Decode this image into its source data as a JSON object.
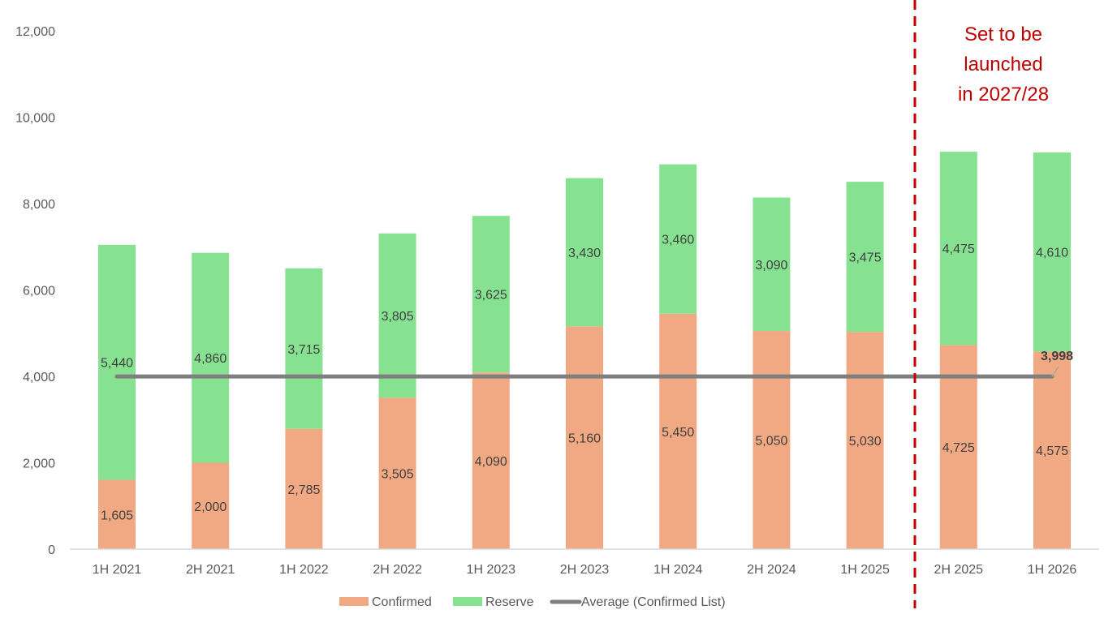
{
  "chart_data": {
    "type": "bar",
    "stacked": true,
    "title": "",
    "xlabel": "",
    "ylabel": "",
    "ylim": [
      0,
      12000
    ],
    "yticks": [
      0,
      2000,
      4000,
      6000,
      8000,
      10000,
      12000
    ],
    "ytick_labels": [
      "0",
      "2,000",
      "4,000",
      "6,000",
      "8,000",
      "10,000",
      "12,000"
    ],
    "grid": false,
    "categories": [
      "1H 2021",
      "2H 2021",
      "1H 2022",
      "2H 2022",
      "1H 2023",
      "2H 2023",
      "1H 2024",
      "2H 2024",
      "1H 2025",
      "2H 2025",
      "1H 2026"
    ],
    "series": [
      {
        "name": "Confirmed",
        "type": "bar",
        "color": "#f1a983",
        "values": [
          1605,
          2000,
          2785,
          3505,
          4090,
          5160,
          5450,
          5050,
          5030,
          4725,
          4575
        ],
        "labels": [
          "1,605",
          "2,000",
          "2,785",
          "3,505",
          "4,090",
          "5,160",
          "5,450",
          "5,050",
          "5,030",
          "4,725",
          "4,575"
        ]
      },
      {
        "name": "Reserve",
        "type": "bar",
        "color": "#86e291",
        "values": [
          5440,
          4860,
          3715,
          3805,
          3625,
          3430,
          3460,
          3090,
          3475,
          4475,
          4610
        ],
        "labels": [
          "5,440",
          "4,860",
          "3,715",
          "3,805",
          "3,625",
          "3,430",
          "3,460",
          "3,090",
          "3,475",
          "4,475",
          "4,610"
        ]
      },
      {
        "name": "Average (Confirmed List)",
        "type": "line",
        "color": "#7f7f7f",
        "values": [
          3998,
          3998,
          3998,
          3998,
          3998,
          3998,
          3998,
          3998,
          3998,
          3998,
          3998
        ],
        "end_label": "3,998"
      }
    ],
    "legend": {
      "position": "bottom",
      "entries": [
        "Confirmed",
        "Reserve",
        "Average (Confirmed List)"
      ]
    },
    "annotation": {
      "lines": [
        "Set to be",
        "launched",
        "in 2027/28"
      ],
      "color": "#c00000",
      "divider_between": [
        "1H 2025",
        "2H 2025"
      ],
      "divider_style": "dashed"
    }
  }
}
